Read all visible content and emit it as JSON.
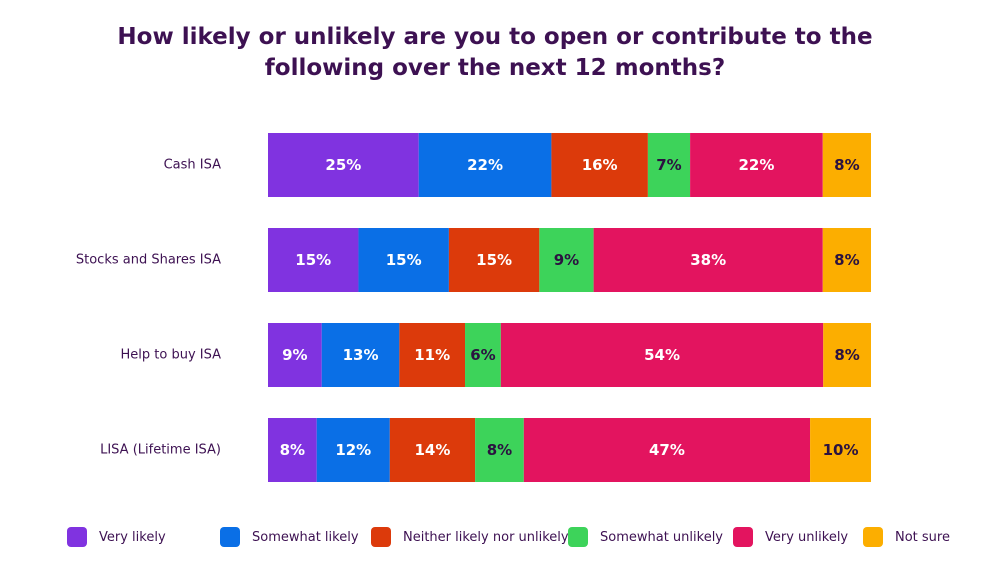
{
  "chart_data": {
    "type": "bar",
    "orientation": "horizontal",
    "stacked": true,
    "percent_stacked": true,
    "title_lines": [
      "How likely or unlikely are you to open or contribute to the",
      "following over the next 12 months?"
    ],
    "categories": [
      "Cash ISA",
      "Stocks and Shares ISA",
      "Help to buy ISA",
      "LISA (Lifetime ISA)"
    ],
    "series": [
      {
        "name": "Very likely",
        "color": "#8033e0",
        "values": [
          25,
          15,
          9,
          8
        ]
      },
      {
        "name": "Somewhat likely",
        "color": "#0a6fe6",
        "values": [
          22,
          15,
          13,
          12
        ]
      },
      {
        "name": "Neither likely nor unlikely",
        "color": "#dc3a0b",
        "values": [
          16,
          15,
          11,
          14
        ]
      },
      {
        "name": "Somewhat unlikely",
        "color": "#3dd35a",
        "values": [
          7,
          9,
          6,
          8
        ]
      },
      {
        "name": "Very unlikely",
        "color": "#e3145f",
        "values": [
          22,
          38,
          54,
          47
        ]
      },
      {
        "name": "Not sure",
        "color": "#fcae00",
        "values": [
          8,
          8,
          8,
          10
        ]
      }
    ],
    "data_labels": [
      [
        "25%",
        "15%",
        "9%",
        "8%"
      ],
      [
        "22%",
        "15%",
        "13%",
        "12%"
      ],
      [
        "16%",
        "15%",
        "11%",
        "14%"
      ],
      [
        "7%",
        "9%",
        "6%",
        "8%"
      ],
      [
        "22%",
        "38%",
        "54%",
        "47%"
      ],
      [
        "8%",
        "8%",
        "8%",
        "10%"
      ]
    ],
    "label_colors": {
      "light": "#ffffff",
      "dark": "#2b1240"
    },
    "legend_position": "bottom",
    "xlabel": "",
    "ylabel": "",
    "xlim": [
      0,
      100
    ],
    "grid": false
  }
}
